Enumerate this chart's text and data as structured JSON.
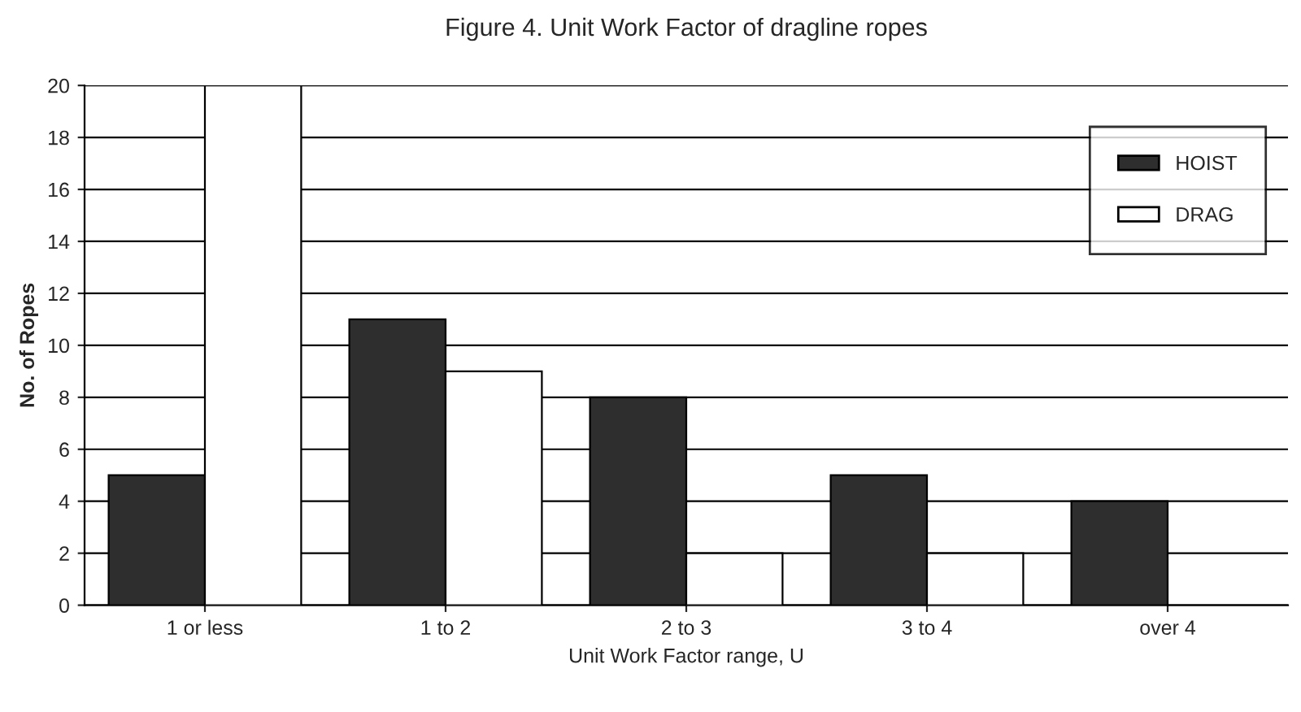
{
  "chart_data": {
    "type": "bar",
    "title": "Figure 4. Unit Work Factor of dragline ropes",
    "xlabel": "Unit Work Factor range, U",
    "ylabel": "No. of Ropes",
    "categories": [
      "1 or less",
      "1 to 2",
      "2 to 3",
      "3 to 4",
      "over 4"
    ],
    "series": [
      {
        "name": "HOIST",
        "color": "#2e2e2e",
        "values": [
          5,
          11,
          8,
          5,
          4
        ]
      },
      {
        "name": "DRAG",
        "color": "#ffffff",
        "values": [
          20,
          9,
          2,
          2,
          null
        ]
      }
    ],
    "ylim": [
      0,
      20
    ],
    "yticks": [
      0,
      2,
      4,
      6,
      8,
      10,
      12,
      14,
      16,
      18,
      20
    ],
    "grid": "y",
    "legend": "top right"
  }
}
